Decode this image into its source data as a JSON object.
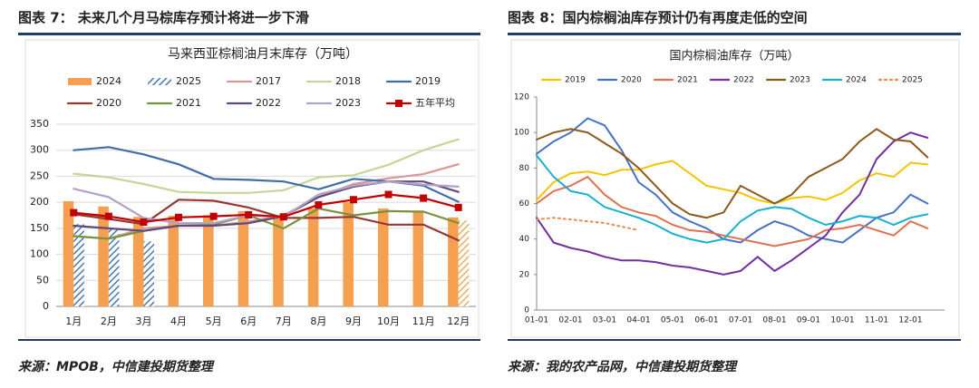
{
  "figures": [
    {
      "caption": "图表 7： 未来几个月马棕库存预计将进一步下滑",
      "source": "来源：MPOB，中信建投期货整理"
    },
    {
      "caption": "图表 8：国内棕榈油库存预计仍有再度走低的空间",
      "source": "来源：我的农产品网，中信建投期货整理"
    }
  ],
  "chart_data": [
    {
      "type": "combo",
      "title": "马来西亚棕榈油月末库存（万吨）",
      "categories": [
        "1月",
        "2月",
        "3月",
        "4月",
        "5月",
        "6月",
        "7月",
        "8月",
        "9月",
        "10月",
        "11月",
        "12月"
      ],
      "ylim": [
        0,
        350
      ],
      "yticks": [
        0,
        50,
        100,
        150,
        200,
        250,
        300,
        350
      ],
      "grid": true,
      "series": [
        {
          "name": "2024",
          "kind": "bar",
          "color": "#f4a050",
          "values": [
            202,
            192,
            172,
            174,
            175,
            183,
            173,
            188,
            200,
            188,
            184,
            171
          ]
        },
        {
          "name": "2025",
          "kind": "bar",
          "hatch": true,
          "color": "#4a78b0",
          "values": [
            158,
            150,
            125,
            null,
            null,
            null,
            null,
            null,
            null,
            null,
            null,
            165
          ]
        },
        {
          "name": "2017",
          "kind": "line",
          "color": "#d99694",
          "values": [
            135,
            130,
            150,
            155,
            155,
            163,
            175,
            210,
            235,
            246,
            254,
            273
          ]
        },
        {
          "name": "2018",
          "kind": "line",
          "color": "#c4d79b",
          "values": [
            255,
            248,
            235,
            220,
            218,
            218,
            223,
            248,
            252,
            272,
            300,
            321
          ]
        },
        {
          "name": "2019",
          "kind": "line",
          "color": "#3f6ea6",
          "values": [
            300,
            306,
            292,
            273,
            245,
            243,
            240,
            225,
            245,
            240,
            232,
            201
          ]
        },
        {
          "name": "2020",
          "kind": "line",
          "color": "#953735",
          "values": [
            177,
            168,
            158,
            205,
            203,
            190,
            170,
            170,
            172,
            157,
            157,
            127
          ]
        },
        {
          "name": "2021",
          "kind": "line",
          "color": "#77933c",
          "values": [
            135,
            130,
            145,
            155,
            157,
            175,
            150,
            188,
            175,
            183,
            182,
            160
          ]
        },
        {
          "name": "2022",
          "kind": "line",
          "color": "#604a7b",
          "values": [
            155,
            150,
            145,
            155,
            155,
            160,
            173,
            210,
            230,
            240,
            240,
            220
          ]
        },
        {
          "name": "2023",
          "kind": "line",
          "color": "#b3a2c7",
          "values": [
            226,
            210,
            170,
            160,
            160,
            175,
            172,
            215,
            232,
            240,
            234,
            230
          ]
        },
        {
          "name": "五年平均",
          "kind": "line",
          "marker": "square",
          "color": "#c00000",
          "values": [
            180,
            173,
            162,
            171,
            173,
            176,
            172,
            195,
            205,
            215,
            208,
            190
          ]
        }
      ]
    },
    {
      "type": "line",
      "title": "国内棕榈油库存（万吨）",
      "categories": [
        "01-01",
        null,
        "02-01",
        null,
        "03-01",
        null,
        "04-01",
        null,
        "05-01",
        null,
        "06-01",
        null,
        "07-01",
        null,
        "08-01",
        null,
        "09-01",
        null,
        "10-01",
        null,
        "11-01",
        null,
        "12-01",
        null
      ],
      "ylim": [
        0,
        120
      ],
      "yticks": [
        0,
        20,
        40,
        60,
        80,
        100,
        120
      ],
      "grid": false,
      "series": [
        {
          "name": "2019",
          "color": "#f5c400",
          "values": [
            62,
            72,
            77,
            78,
            76,
            79,
            79,
            82,
            84,
            77,
            70,
            68,
            66,
            62,
            60,
            63,
            64,
            62,
            66,
            73,
            77,
            75,
            83,
            82
          ]
        },
        {
          "name": "2020",
          "color": "#4472c4",
          "values": [
            88,
            95,
            100,
            108,
            104,
            90,
            72,
            65,
            55,
            50,
            46,
            40,
            38,
            45,
            50,
            47,
            42,
            40,
            38,
            45,
            52,
            55,
            65,
            60
          ]
        },
        {
          "name": "2021",
          "color": "#e07050",
          "values": [
            60,
            67,
            70,
            75,
            65,
            58,
            55,
            53,
            48,
            45,
            44,
            42,
            40,
            38,
            36,
            38,
            40,
            45,
            46,
            48,
            45,
            42,
            50,
            46
          ]
        },
        {
          "name": "2022",
          "color": "#7030a0",
          "values": [
            52,
            38,
            35,
            33,
            30,
            28,
            28,
            27,
            25,
            24,
            22,
            20,
            22,
            30,
            22,
            28,
            35,
            42,
            55,
            65,
            85,
            95,
            100,
            97
          ]
        },
        {
          "name": "2023",
          "color": "#8b5a1a",
          "values": [
            96,
            100,
            102,
            100,
            94,
            88,
            80,
            70,
            60,
            54,
            52,
            55,
            70,
            65,
            60,
            65,
            75,
            80,
            85,
            95,
            102,
            96,
            95,
            86
          ]
        },
        {
          "name": "2024",
          "color": "#17b0d0",
          "values": [
            87,
            75,
            67,
            65,
            58,
            55,
            52,
            48,
            43,
            40,
            38,
            40,
            50,
            56,
            58,
            57,
            52,
            48,
            50,
            53,
            52,
            48,
            52,
            54
          ]
        },
        {
          "name": "2025",
          "color": "#e8894a",
          "dash": true,
          "values": [
            51,
            52,
            51,
            50,
            49,
            47,
            45,
            null,
            null,
            null,
            null,
            null,
            null,
            null,
            null,
            null,
            null,
            null,
            null,
            null,
            null,
            null,
            null,
            null
          ]
        }
      ]
    }
  ]
}
